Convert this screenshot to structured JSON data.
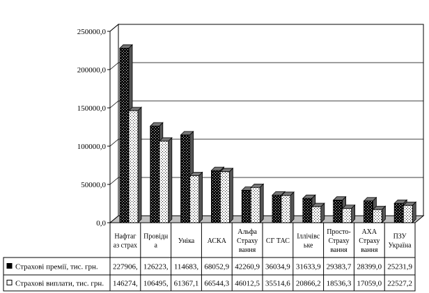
{
  "chart_data": {
    "type": "bar",
    "categories": [
      "Нафтаг\nаз страх",
      "Провідн\nа",
      "Уніка",
      "АСКА",
      "Альфа\nСтраху\nвання",
      "СГ ТАС",
      "Іллічівс\nьке",
      "Просто-\nСтраху\nвання",
      "АХА\nСтраху\nвання",
      "ПЗУ\nУкраїна"
    ],
    "series": [
      {
        "name": "Страхові премії, тис. грн.",
        "values": [
          227906,
          126223,
          114683,
          68052.9,
          42260.9,
          36034.9,
          31633.9,
          29383.7,
          28399.0,
          25231.9
        ],
        "labels": [
          "227906,",
          "126223,",
          "114683,",
          "68052,9",
          "42260,9",
          "36034,9",
          "31633,9",
          "29383,7",
          "28399,0",
          "25231,9"
        ],
        "pattern": "black-dots"
      },
      {
        "name": "Страхові виплати, тис. грн.",
        "values": [
          146274,
          106495,
          61367.1,
          66544.3,
          46012.5,
          35514.6,
          20866.2,
          18536.3,
          17059.0,
          22527.2
        ],
        "labels": [
          "146274,",
          "106495,",
          "61367,1",
          "66544,3",
          "46012,5",
          "35514,6",
          "20866,2",
          "18536,3",
          "17059,0",
          "22527,2"
        ],
        "pattern": "white-dots"
      }
    ],
    "ylim": [
      0,
      250000
    ],
    "ytick_values": [
      0,
      50000,
      100000,
      150000,
      200000,
      250000
    ],
    "ytick_labels": [
      "0,0",
      "50000,0",
      "100000,0",
      "150000,0",
      "200000,0",
      "250000,0"
    ],
    "grid": true,
    "legend": "table-bottom",
    "colors": {
      "frame": "#000000",
      "grid": "#000000",
      "series1_fill": "#000000",
      "series2_fill": "#ffffff"
    }
  }
}
